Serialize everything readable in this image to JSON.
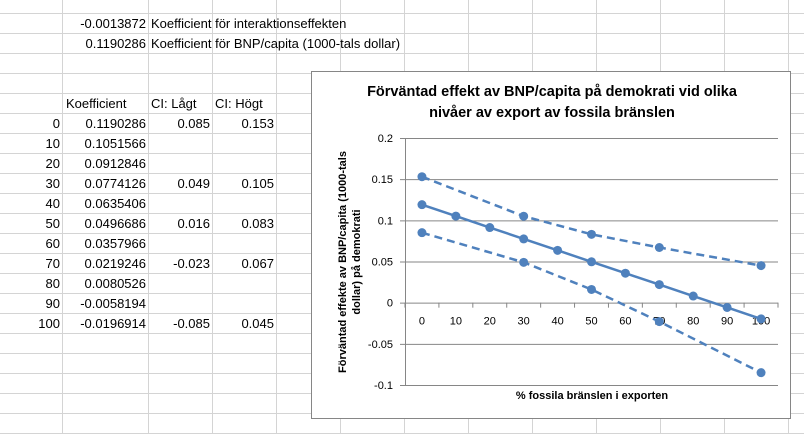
{
  "sheet": {
    "top_rows": [
      {
        "value": "-0.0013872",
        "label": "Koefficient för interaktionseffekten"
      },
      {
        "value": "0.1190286",
        "label": "Koefficient för BNP/capita (1000-tals dollar)"
      }
    ],
    "headers": [
      "Koefficient",
      "CI: Lågt",
      "CI: Högt"
    ],
    "rows": [
      {
        "x": "0",
        "coef": "0.1190286",
        "lo": "0.085",
        "hi": "0.153"
      },
      {
        "x": "10",
        "coef": "0.1051566",
        "lo": "",
        "hi": ""
      },
      {
        "x": "20",
        "coef": "0.0912846",
        "lo": "",
        "hi": ""
      },
      {
        "x": "30",
        "coef": "0.0774126",
        "lo": "0.049",
        "hi": "0.105"
      },
      {
        "x": "40",
        "coef": "0.0635406",
        "lo": "",
        "hi": ""
      },
      {
        "x": "50",
        "coef": "0.0496686",
        "lo": "0.016",
        "hi": "0.083"
      },
      {
        "x": "60",
        "coef": "0.0357966",
        "lo": "",
        "hi": ""
      },
      {
        "x": "70",
        "coef": "0.0219246",
        "lo": "-0.023",
        "hi": "0.067"
      },
      {
        "x": "80",
        "coef": "0.0080526",
        "lo": "",
        "hi": ""
      },
      {
        "x": "90",
        "coef": "-0.0058194",
        "lo": "",
        "hi": ""
      },
      {
        "x": "100",
        "coef": "-0.0196914",
        "lo": "-0.085",
        "hi": "0.045"
      }
    ]
  },
  "chart_data": {
    "type": "line",
    "title": "Förväntad effekt av BNP/capita på demokrati vid olika nivåer av export av fossila bränslen",
    "title_lines": [
      "Förväntad effekt av BNP/capita på demokrati vid olika",
      "nivåer av export av fossila bränslen"
    ],
    "xlabel": "% fossila  bränslen i exporten",
    "ylabel_lines": [
      "Förväntad effekte av BNP/capita  (1000-tals",
      "dollar) på demokrati"
    ],
    "categories": [
      "0",
      "10",
      "20",
      "30",
      "40",
      "50",
      "60",
      "70",
      "80",
      "90",
      "100"
    ],
    "ylim": [
      -0.1,
      0.2
    ],
    "yticks": [
      "0.2",
      "0.15",
      "0.1",
      "0.05",
      "0",
      "-0.05",
      "-0.1"
    ],
    "grid": true,
    "legend": "none",
    "color": "#4F81BD",
    "series": [
      {
        "style": "solid",
        "values": [
          0.1190286,
          0.1051566,
          0.0912846,
          0.0774126,
          0.0635406,
          0.0496686,
          0.0357966,
          0.0219246,
          0.0080526,
          -0.0058194,
          -0.0196914
        ]
      },
      {
        "style": "dashed",
        "values": [
          0.153,
          null,
          null,
          0.105,
          null,
          0.083,
          null,
          0.067,
          null,
          null,
          0.045
        ]
      },
      {
        "style": "dashed",
        "values": [
          0.085,
          null,
          null,
          0.049,
          null,
          0.016,
          null,
          -0.023,
          null,
          null,
          -0.085
        ]
      }
    ]
  }
}
